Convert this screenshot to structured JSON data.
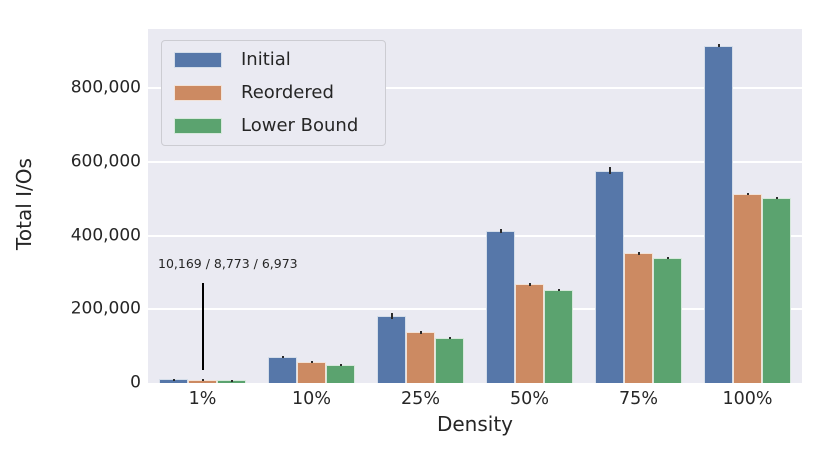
{
  "chart_data": {
    "type": "bar",
    "title": "",
    "xlabel": "Density",
    "ylabel": "Total I/Os",
    "categories": [
      "1%",
      "10%",
      "25%",
      "50%",
      "75%",
      "100%"
    ],
    "series": [
      {
        "name": "Initial",
        "color": "#5677a9",
        "values": [
          10169,
          71000,
          181000,
          412000,
          576000,
          915000
        ],
        "errors": [
          1200,
          3000,
          8000,
          6000,
          10000,
          3000
        ]
      },
      {
        "name": "Reordered",
        "color": "#cc8a62",
        "values": [
          8773,
          58000,
          137000,
          268000,
          352000,
          513000
        ],
        "errors": [
          1200,
          3000,
          5000,
          4000,
          4000,
          3000
        ]
      },
      {
        "name": "Lower Bound",
        "color": "#5ba36f",
        "values": [
          6973,
          50000,
          122000,
          252000,
          339000,
          503000
        ],
        "errors": [
          1200,
          2500,
          4000,
          3000,
          4000,
          2500
        ]
      }
    ],
    "ylim": [
      0,
      960000
    ],
    "yticks": [
      {
        "value": 0,
        "label": "0"
      },
      {
        "value": 200000,
        "label": "200,000"
      },
      {
        "value": 400000,
        "label": "400,000"
      },
      {
        "value": 600000,
        "label": "600,000"
      },
      {
        "value": 800000,
        "label": "800,000"
      }
    ],
    "grid": true,
    "legend_position": "upper left",
    "annotation": {
      "text": "10,169 / 8,773 / 6,973",
      "target_category": "1%",
      "target_series": "Reordered"
    }
  },
  "style": {
    "plot_background": "#eaeaf2",
    "grid_color": "#ffffff",
    "text_color": "#262626",
    "errorbar_color": "#2b2b2b",
    "annotation_line_color": "#000000"
  }
}
